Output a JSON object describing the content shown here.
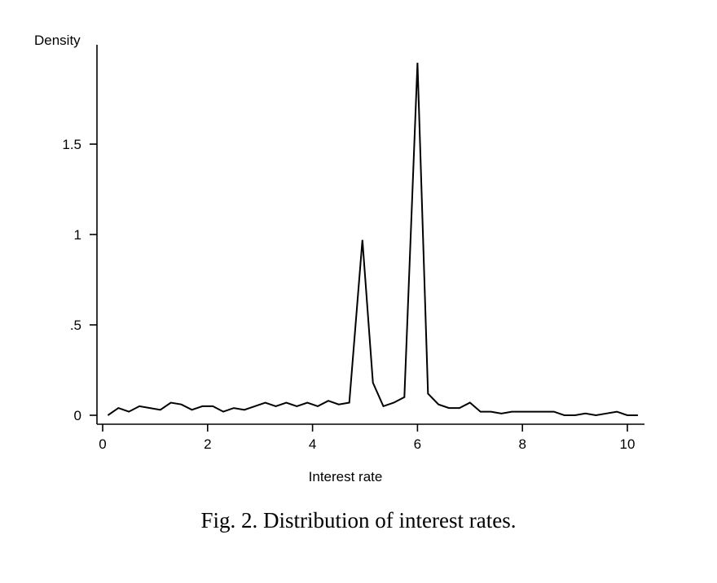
{
  "chart_data": {
    "type": "line",
    "ylabel": "Density",
    "xlabel": "Interest rate",
    "xlim": [
      0,
      10.2
    ],
    "ylim": [
      0,
      2.0
    ],
    "x_ticks": [
      0,
      2,
      4,
      6,
      8,
      10
    ],
    "x_tick_labels": [
      "0",
      "2",
      "4",
      "6",
      "8",
      "10"
    ],
    "y_ticks": [
      0,
      0.5,
      1,
      1.5
    ],
    "y_tick_labels": [
      "0",
      ".5",
      "1",
      "1.5"
    ],
    "grid": false,
    "series": [
      {
        "x": [
          0.1,
          0.3,
          0.5,
          0.7,
          0.9,
          1.1,
          1.3,
          1.5,
          1.7,
          1.9,
          2.1,
          2.3,
          2.5,
          2.7,
          2.9,
          3.1,
          3.3,
          3.5,
          3.7,
          3.9,
          4.1,
          4.3,
          4.5,
          4.7,
          4.95,
          5.15,
          5.35,
          5.55,
          5.75,
          6.0,
          6.2,
          6.4,
          6.6,
          6.8,
          7.0,
          7.2,
          7.4,
          7.6,
          7.8,
          8.0,
          8.2,
          8.4,
          8.6,
          8.8,
          9.0,
          9.2,
          9.4,
          9.6,
          9.8,
          10.0,
          10.2
        ],
        "values": [
          0.0,
          0.04,
          0.02,
          0.05,
          0.04,
          0.03,
          0.07,
          0.06,
          0.03,
          0.05,
          0.05,
          0.02,
          0.04,
          0.03,
          0.05,
          0.07,
          0.05,
          0.07,
          0.05,
          0.07,
          0.05,
          0.08,
          0.06,
          0.07,
          0.97,
          0.18,
          0.05,
          0.07,
          0.1,
          1.95,
          0.12,
          0.06,
          0.04,
          0.04,
          0.07,
          0.02,
          0.02,
          0.01,
          0.02,
          0.02,
          0.02,
          0.02,
          0.02,
          0.0,
          0.0,
          0.01,
          0.0,
          0.01,
          0.02,
          0.0,
          0.0
        ]
      }
    ]
  },
  "caption": "Fig. 2.  Distribution of interest rates."
}
